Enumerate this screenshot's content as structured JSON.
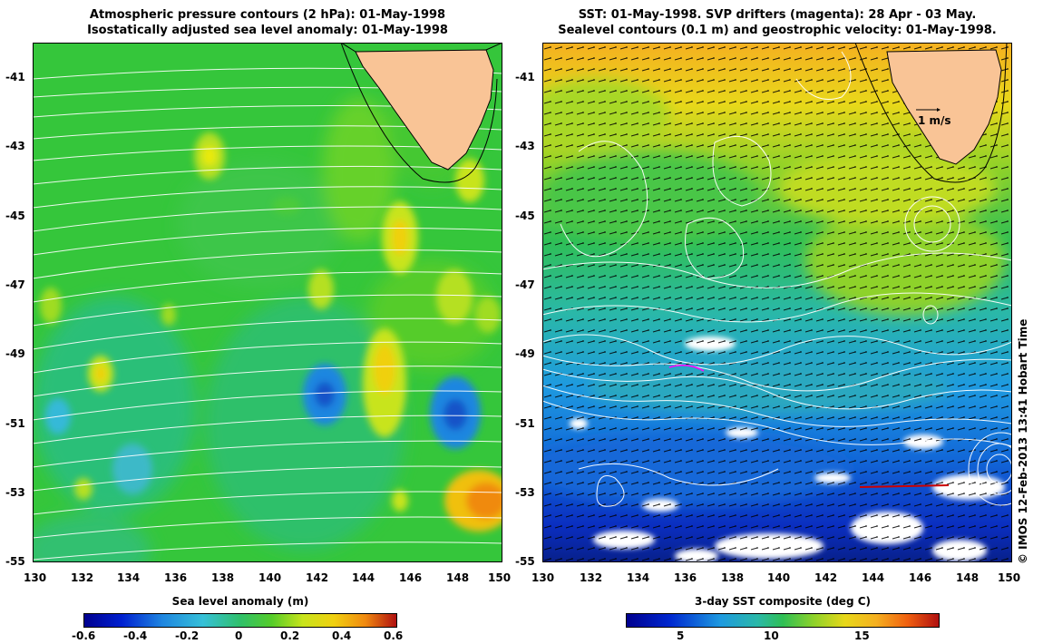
{
  "left_panel": {
    "title_line1": "Atmospheric pressure contours (2 hPa): 01-May-1998",
    "title_line2": "Isostatically adjusted sea level anomaly: 01-May-1998",
    "x_ticks": [
      "130",
      "132",
      "134",
      "136",
      "138",
      "140",
      "142",
      "144",
      "146",
      "148",
      "150"
    ],
    "y_ticks": [
      "-41",
      "-43",
      "-45",
      "-47",
      "-49",
      "-51",
      "-53",
      "-55"
    ],
    "colorbar_label": "Sea level anomaly (m)",
    "colorbar_ticks": [
      "-0.6",
      "-0.4",
      "-0.2",
      "0",
      "0.2",
      "0.4",
      "0.6"
    ]
  },
  "right_panel": {
    "title_line1": "SST: 01-May-1998. SVP drifters (magenta): 28 Apr - 03 May.",
    "title_line2": "Sealevel contours (0.1 m) and geostrophic velocity: 01-May-1998.",
    "x_ticks": [
      "130",
      "132",
      "134",
      "136",
      "138",
      "140",
      "142",
      "144",
      "146",
      "148",
      "150"
    ],
    "y_ticks": [
      "-41",
      "-43",
      "-45",
      "-47",
      "-49",
      "-51",
      "-53",
      "-55"
    ],
    "scale_label": "1 m/s",
    "colorbar_label": "3-day SST composite (deg C)",
    "colorbar_ticks": [
      "5",
      "10",
      "15"
    ]
  },
  "credit": "© IMOS 12-Feb-2013 13:41 Hobart Time",
  "colors": {
    "land": "#f9c496",
    "contour": "#ffffff",
    "drifter_magenta": "#ff00ff",
    "drifter_red": "#cc0000"
  }
}
